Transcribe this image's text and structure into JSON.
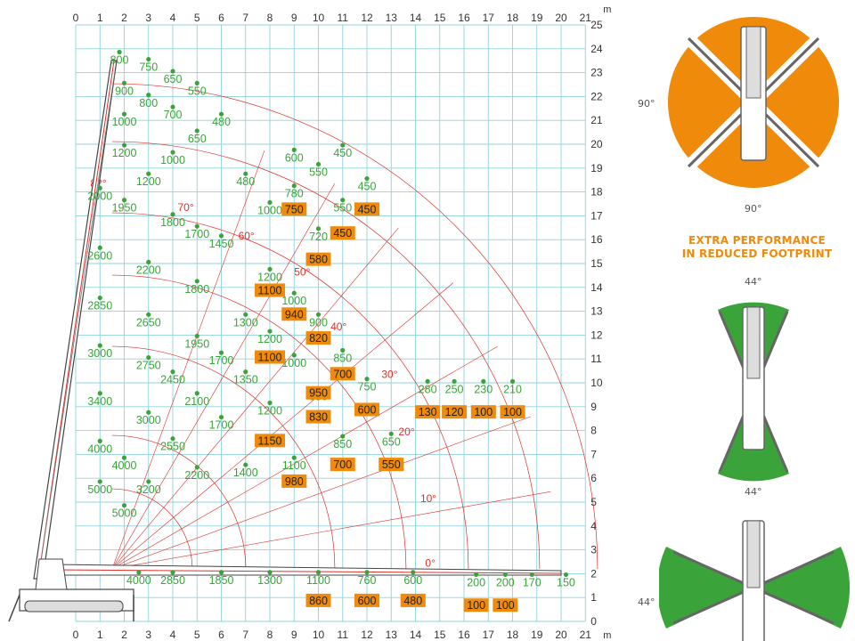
{
  "chart_data": {
    "type": "scatter",
    "title": "",
    "x_unit": "m",
    "y_unit": "m",
    "xlim": [
      0,
      21
    ],
    "ylim": [
      0,
      25
    ],
    "x_ticks": [
      0,
      1,
      2,
      3,
      4,
      5,
      6,
      7,
      8,
      9,
      10,
      11,
      12,
      13,
      14,
      15,
      16,
      17,
      18,
      19,
      20,
      21
    ],
    "y_ticks": [
      0,
      1,
      2,
      3,
      4,
      5,
      6,
      7,
      8,
      9,
      10,
      11,
      12,
      13,
      14,
      15,
      16,
      17,
      18,
      19,
      20,
      21,
      22,
      23,
      24,
      25
    ],
    "angle_labels": [
      {
        "text": "82°",
        "x": 0.6,
        "y": 18.2
      },
      {
        "text": "70°",
        "x": 4.2,
        "y": 17.2
      },
      {
        "text": "60°",
        "x": 6.7,
        "y": 16.0
      },
      {
        "text": "50°",
        "x": 9.0,
        "y": 14.5
      },
      {
        "text": "40°",
        "x": 10.5,
        "y": 12.2
      },
      {
        "text": "30°",
        "x": 12.6,
        "y": 10.2
      },
      {
        "text": "20°",
        "x": 13.3,
        "y": 7.8
      },
      {
        "text": "10°",
        "x": 14.2,
        "y": 5.0
      },
      {
        "text": "0°",
        "x": 14.4,
        "y": 2.3
      }
    ],
    "loads_green": [
      {
        "label": "800",
        "x": 1.8,
        "y": 23.6
      },
      {
        "label": "750",
        "x": 3.0,
        "y": 23.3
      },
      {
        "label": "650",
        "x": 4.0,
        "y": 22.8
      },
      {
        "label": "550",
        "x": 5.0,
        "y": 22.3
      },
      {
        "label": "900",
        "x": 2.0,
        "y": 22.3
      },
      {
        "label": "800",
        "x": 3.0,
        "y": 21.8
      },
      {
        "label": "700",
        "x": 4.0,
        "y": 21.3
      },
      {
        "label": "480",
        "x": 6.0,
        "y": 21.0
      },
      {
        "label": "1000",
        "x": 2.0,
        "y": 21.0
      },
      {
        "label": "650",
        "x": 5.0,
        "y": 20.3
      },
      {
        "label": "1200",
        "x": 2.0,
        "y": 19.7
      },
      {
        "label": "1000",
        "x": 4.0,
        "y": 19.4
      },
      {
        "label": "1200",
        "x": 3.0,
        "y": 18.5
      },
      {
        "label": "480",
        "x": 7.0,
        "y": 18.5
      },
      {
        "label": "2000",
        "x": 1.0,
        "y": 17.9
      },
      {
        "label": "1950",
        "x": 2.0,
        "y": 17.4
      },
      {
        "label": "1800",
        "x": 4.0,
        "y": 16.8
      },
      {
        "label": "1700",
        "x": 5.0,
        "y": 16.3
      },
      {
        "label": "1450",
        "x": 6.0,
        "y": 15.9
      },
      {
        "label": "2600",
        "x": 1.0,
        "y": 15.4
      },
      {
        "label": "2200",
        "x": 3.0,
        "y": 14.8
      },
      {
        "label": "1800",
        "x": 5.0,
        "y": 14.0
      },
      {
        "label": "2850",
        "x": 1.0,
        "y": 13.3
      },
      {
        "label": "2650",
        "x": 3.0,
        "y": 12.6
      },
      {
        "label": "1300",
        "x": 7.0,
        "y": 12.6
      },
      {
        "label": "1950",
        "x": 5.0,
        "y": 11.7
      },
      {
        "label": "3000",
        "x": 1.0,
        "y": 11.3
      },
      {
        "label": "2750",
        "x": 3.0,
        "y": 10.8
      },
      {
        "label": "1700",
        "x": 6.0,
        "y": 11.0
      },
      {
        "label": "2450",
        "x": 4.0,
        "y": 10.2
      },
      {
        "label": "1350",
        "x": 7.0,
        "y": 10.2
      },
      {
        "label": "3400",
        "x": 1.0,
        "y": 9.3
      },
      {
        "label": "2100",
        "x": 5.0,
        "y": 9.3
      },
      {
        "label": "3000",
        "x": 3.0,
        "y": 8.5
      },
      {
        "label": "1700",
        "x": 6.0,
        "y": 8.3
      },
      {
        "label": "2550",
        "x": 4.0,
        "y": 7.4
      },
      {
        "label": "1400",
        "x": 7.0,
        "y": 6.3
      },
      {
        "label": "4000",
        "x": 1.0,
        "y": 7.3
      },
      {
        "label": "4000",
        "x": 2.0,
        "y": 6.6
      },
      {
        "label": "2200",
        "x": 5.0,
        "y": 6.2
      },
      {
        "label": "5000",
        "x": 1.0,
        "y": 5.6
      },
      {
        "label": "3200",
        "x": 3.0,
        "y": 5.6
      },
      {
        "label": "5000",
        "x": 2.0,
        "y": 4.6
      },
      {
        "label": "4000",
        "x": 2.6,
        "y": 1.8
      },
      {
        "label": "2850",
        "x": 4.0,
        "y": 1.8
      },
      {
        "label": "1850",
        "x": 6.0,
        "y": 1.8
      },
      {
        "label": "1300",
        "x": 8.0,
        "y": 1.8
      },
      {
        "label": "1100",
        "x": 10.0,
        "y": 1.8
      },
      {
        "label": "760",
        "x": 12.0,
        "y": 1.8
      },
      {
        "label": "600",
        "x": 13.9,
        "y": 1.8
      },
      {
        "label": "200",
        "x": 16.5,
        "y": 1.7
      },
      {
        "label": "200",
        "x": 17.7,
        "y": 1.7
      },
      {
        "label": "170",
        "x": 18.8,
        "y": 1.7
      },
      {
        "label": "150",
        "x": 20.2,
        "y": 1.7
      },
      {
        "label": "600",
        "x": 9.0,
        "y": 19.5
      },
      {
        "label": "450",
        "x": 11.0,
        "y": 19.7
      },
      {
        "label": "550",
        "x": 10.0,
        "y": 18.9
      },
      {
        "label": "780",
        "x": 9.0,
        "y": 18.0
      },
      {
        "label": "450",
        "x": 12.0,
        "y": 18.3
      },
      {
        "label": "1000",
        "x": 8.0,
        "y": 17.3
      },
      {
        "label": "550",
        "x": 11.0,
        "y": 17.4
      },
      {
        "label": "720",
        "x": 10.0,
        "y": 16.2
      },
      {
        "label": "1200",
        "x": 8.0,
        "y": 14.5
      },
      {
        "label": "1000",
        "x": 9.0,
        "y": 13.5
      },
      {
        "label": "900",
        "x": 10.0,
        "y": 12.6
      },
      {
        "label": "1200",
        "x": 8.0,
        "y": 11.9
      },
      {
        "label": "850",
        "x": 11.0,
        "y": 11.1
      },
      {
        "label": "1000",
        "x": 9.0,
        "y": 10.9
      },
      {
        "label": "750",
        "x": 12.0,
        "y": 9.9
      },
      {
        "label": "950",
        "x": 10.0,
        "y": 9.5
      },
      {
        "label": "1200",
        "x": 8.0,
        "y": 8.9
      },
      {
        "label": "850",
        "x": 11.0,
        "y": 7.5
      },
      {
        "label": "650",
        "x": 13.0,
        "y": 7.6
      },
      {
        "label": "1100",
        "x": 9.0,
        "y": 6.6
      },
      {
        "label": "280",
        "x": 14.5,
        "y": 9.8
      },
      {
        "label": "250",
        "x": 15.6,
        "y": 9.8
      },
      {
        "label": "230",
        "x": 16.8,
        "y": 9.8
      },
      {
        "label": "210",
        "x": 18.0,
        "y": 9.8
      }
    ],
    "loads_orange": [
      {
        "label": "750",
        "x": 9.0,
        "y": 17.3
      },
      {
        "label": "450",
        "x": 12.0,
        "y": 17.3
      },
      {
        "label": "450",
        "x": 11.0,
        "y": 16.3
      },
      {
        "label": "580",
        "x": 10.0,
        "y": 15.2
      },
      {
        "label": "1100",
        "x": 8.0,
        "y": 13.9
      },
      {
        "label": "940",
        "x": 9.0,
        "y": 12.9
      },
      {
        "label": "820",
        "x": 10.0,
        "y": 11.9
      },
      {
        "label": "1100",
        "x": 8.0,
        "y": 11.1
      },
      {
        "label": "700",
        "x": 11.0,
        "y": 10.4
      },
      {
        "label": "950",
        "x": 10.0,
        "y": 9.6
      },
      {
        "label": "600",
        "x": 12.0,
        "y": 8.9
      },
      {
        "label": "130",
        "x": 14.5,
        "y": 8.8
      },
      {
        "label": "120",
        "x": 15.6,
        "y": 8.8
      },
      {
        "label": "100",
        "x": 16.8,
        "y": 8.8
      },
      {
        "label": "100",
        "x": 18.0,
        "y": 8.8
      },
      {
        "label": "830",
        "x": 10.0,
        "y": 8.6
      },
      {
        "label": "1150",
        "x": 8.0,
        "y": 7.6
      },
      {
        "label": "700",
        "x": 11.0,
        "y": 6.6
      },
      {
        "label": "550",
        "x": 13.0,
        "y": 6.6
      },
      {
        "label": "980",
        "x": 9.0,
        "y": 5.9
      },
      {
        "label": "860",
        "x": 10.0,
        "y": 0.9
      },
      {
        "label": "600",
        "x": 12.0,
        "y": 0.9
      },
      {
        "label": "480",
        "x": 13.9,
        "y": 0.9
      },
      {
        "label": "100",
        "x": 16.5,
        "y": 0.7
      },
      {
        "label": "100",
        "x": 17.7,
        "y": 0.7
      }
    ]
  },
  "side": {
    "top_left_angle": "90°",
    "top_bottom_angle": "90°",
    "headline_line1": "EXTRA PERFORMANCE",
    "headline_line2": "IN REDUCED FOOTPRINT",
    "mid_top_angle": "44°",
    "mid_bottom_angle": "44°",
    "bot_left_angle": "44°",
    "colors": {
      "orange": "#ef8a0a",
      "green": "#3aa33a",
      "grid": "#8fd3dc",
      "red": "#d9312a"
    }
  }
}
